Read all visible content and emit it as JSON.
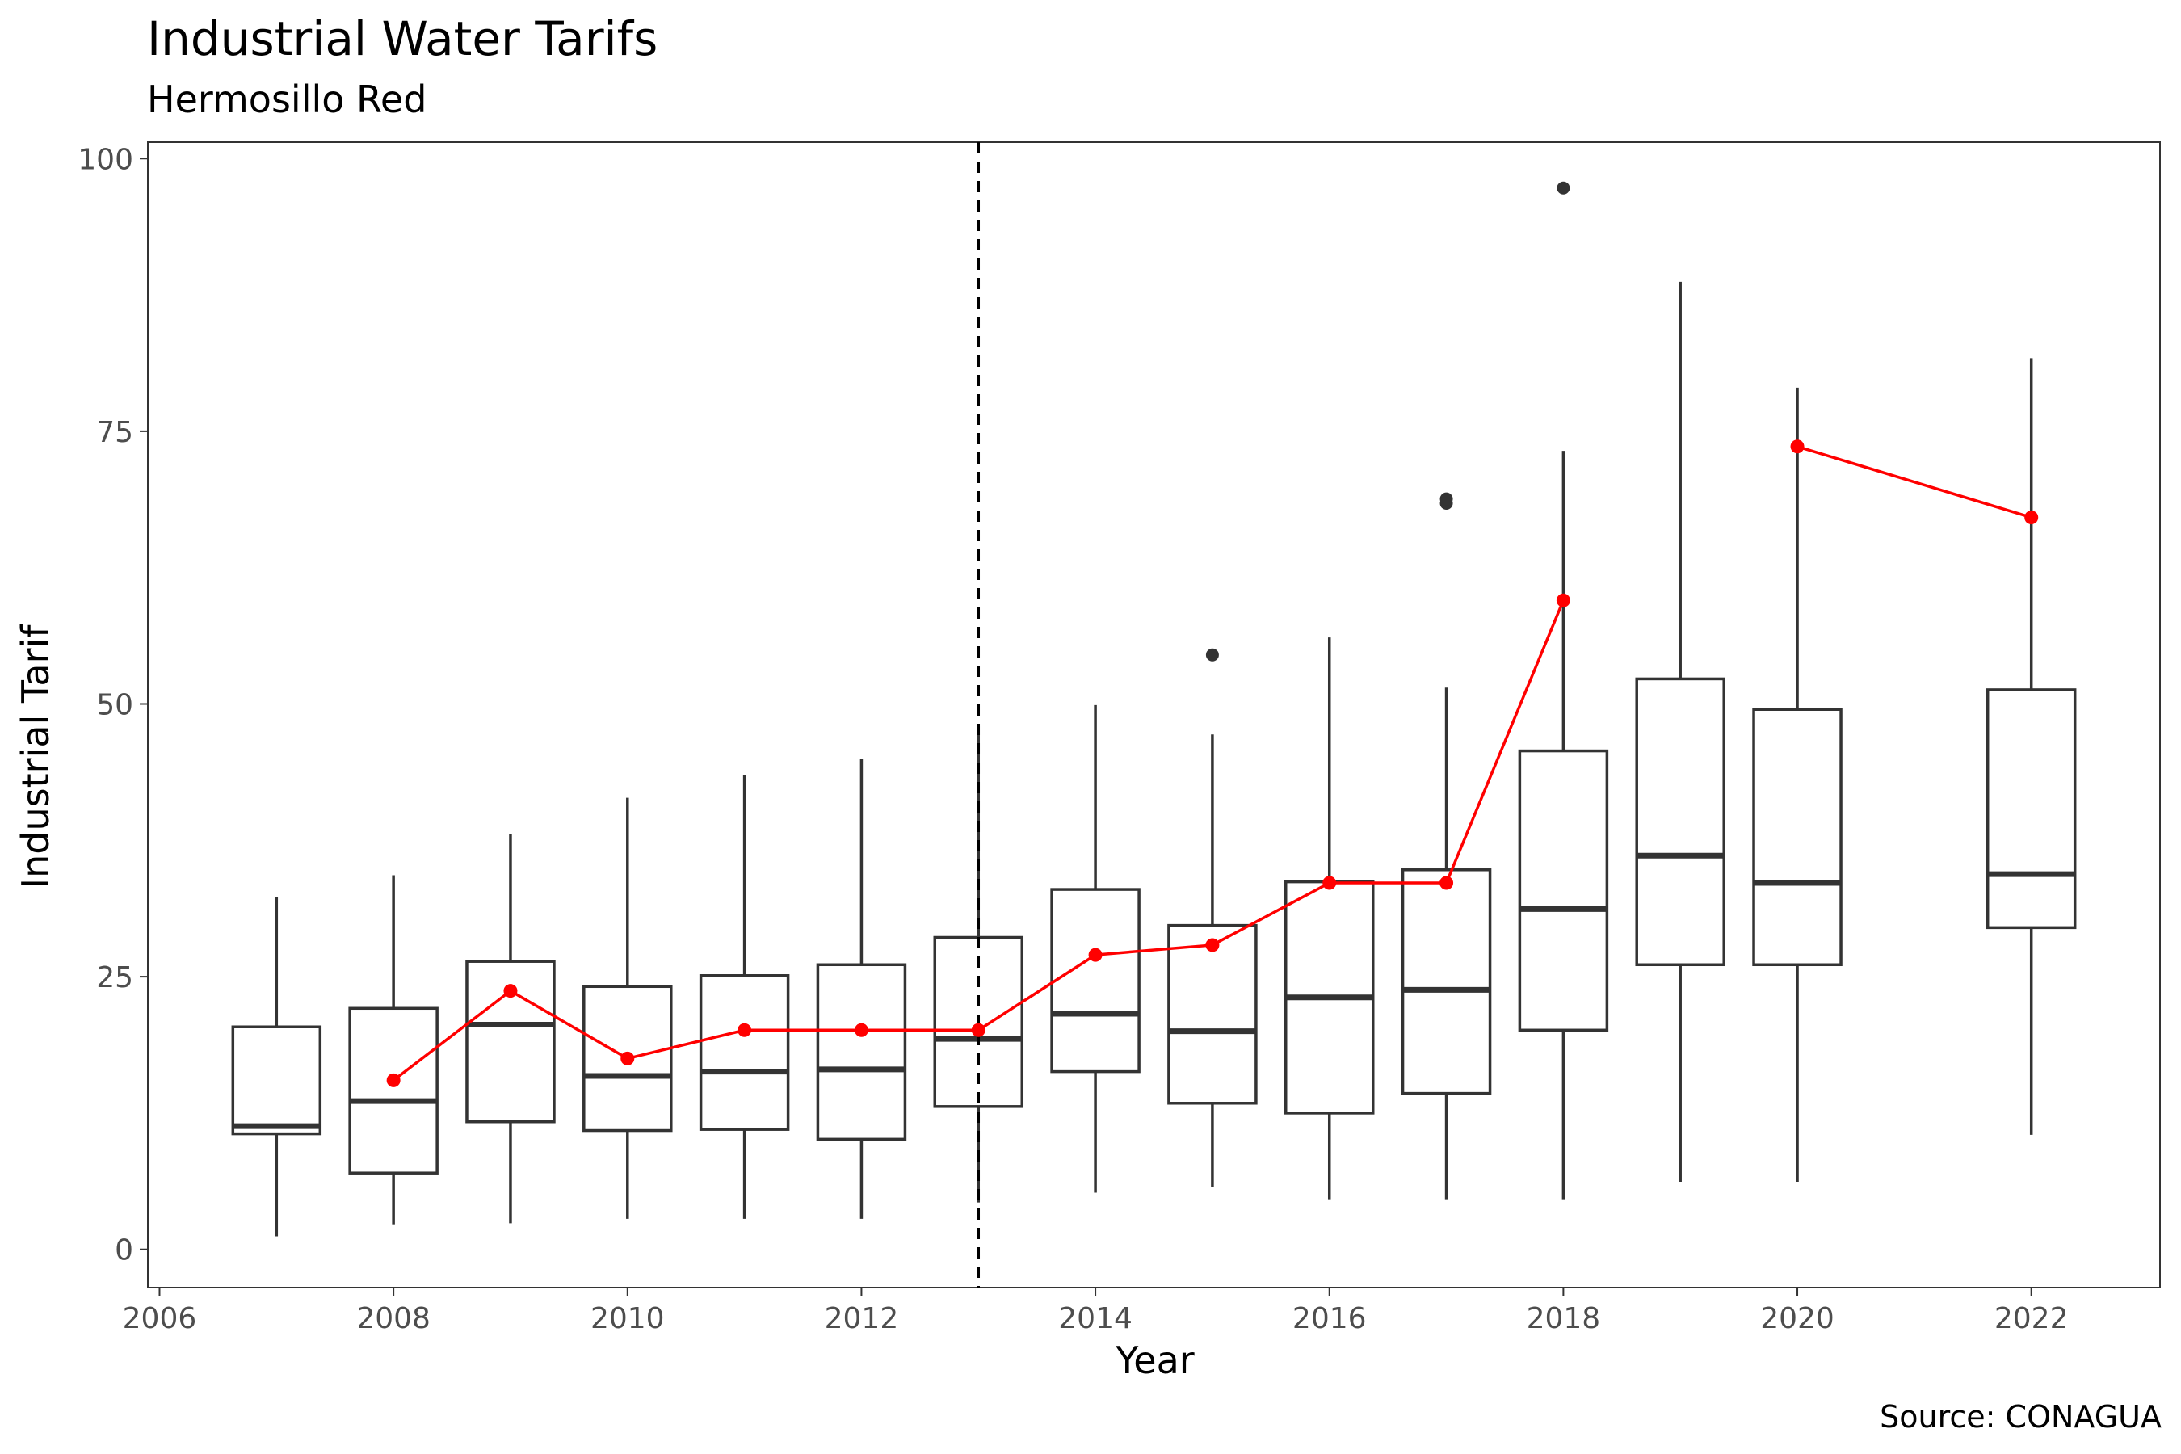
{
  "chart_data": {
    "type": "boxplot",
    "title": "Industrial Water Tarifs",
    "subtitle": "Hermosillo Red",
    "caption": "Source: CONAGUA",
    "xlabel": "Year",
    "ylabel": "Industrial Tarif",
    "xlim": [
      2005.9,
      2023.1
    ],
    "ylim": [
      -3.5,
      101.5
    ],
    "x_ticks": [
      2006,
      2008,
      2010,
      2012,
      2014,
      2016,
      2018,
      2020,
      2022
    ],
    "y_ticks": [
      0,
      25,
      50,
      75,
      100
    ],
    "grid": false,
    "reference_line": {
      "x": 2013,
      "style": "dashed",
      "color": "#000000"
    },
    "boxes": [
      {
        "year": 2007,
        "min": 1.2,
        "q1": 10.6,
        "median": 11.3,
        "q3": 20.4,
        "max": 32.3,
        "outliers": []
      },
      {
        "year": 2008,
        "min": 2.3,
        "q1": 7.0,
        "median": 13.6,
        "q3": 22.1,
        "max": 34.3,
        "outliers": []
      },
      {
        "year": 2009,
        "min": 2.4,
        "q1": 11.7,
        "median": 20.6,
        "q3": 26.4,
        "max": 38.1,
        "outliers": []
      },
      {
        "year": 2010,
        "min": 2.8,
        "q1": 10.9,
        "median": 15.9,
        "q3": 24.1,
        "max": 41.4,
        "outliers": []
      },
      {
        "year": 2011,
        "min": 2.8,
        "q1": 11.0,
        "median": 16.3,
        "q3": 25.1,
        "max": 43.5,
        "outliers": []
      },
      {
        "year": 2012,
        "min": 2.8,
        "q1": 10.1,
        "median": 16.5,
        "q3": 26.1,
        "max": 45.0,
        "outliers": []
      },
      {
        "year": 2013,
        "min": 4.3,
        "q1": 13.1,
        "median": 19.3,
        "q3": 28.6,
        "max": 48.0,
        "outliers": []
      },
      {
        "year": 2014,
        "min": 5.2,
        "q1": 16.3,
        "median": 21.6,
        "q3": 33.0,
        "max": 49.9,
        "outliers": []
      },
      {
        "year": 2015,
        "min": 5.7,
        "q1": 13.4,
        "median": 20.0,
        "q3": 29.7,
        "max": 47.2,
        "outliers": [
          54.5
        ]
      },
      {
        "year": 2016,
        "min": 4.6,
        "q1": 12.5,
        "median": 23.1,
        "q3": 33.7,
        "max": 56.1,
        "outliers": []
      },
      {
        "year": 2017,
        "min": 4.6,
        "q1": 14.3,
        "median": 23.8,
        "q3": 34.8,
        "max": 51.5,
        "outliers": [
          68.4,
          68.8
        ]
      },
      {
        "year": 2018,
        "min": 4.6,
        "q1": 20.1,
        "median": 31.2,
        "q3": 45.7,
        "max": 73.2,
        "outliers": [
          97.3
        ]
      },
      {
        "year": 2019,
        "min": 6.2,
        "q1": 26.1,
        "median": 36.1,
        "q3": 52.3,
        "max": 88.7,
        "outliers": []
      },
      {
        "year": 2020,
        "min": 6.2,
        "q1": 26.1,
        "median": 33.6,
        "q3": 49.5,
        "max": 79.0,
        "outliers": []
      },
      {
        "year": 2022,
        "min": 10.5,
        "q1": 29.5,
        "median": 34.4,
        "q3": 51.3,
        "max": 81.7,
        "outliers": []
      }
    ],
    "series": [
      {
        "color": "#ff0000",
        "segments": [
          {
            "x": [
              2008,
              2009,
              2010,
              2011,
              2012,
              2013,
              2014,
              2015,
              2016,
              2017,
              2018
            ],
            "y": [
              15.5,
              23.7,
              17.5,
              20.1,
              20.1,
              20.1,
              27.0,
              27.9,
              33.6,
              33.6,
              59.5
            ]
          },
          {
            "x": [
              2020,
              2022
            ],
            "y": [
              73.6,
              67.1
            ]
          }
        ]
      }
    ]
  }
}
